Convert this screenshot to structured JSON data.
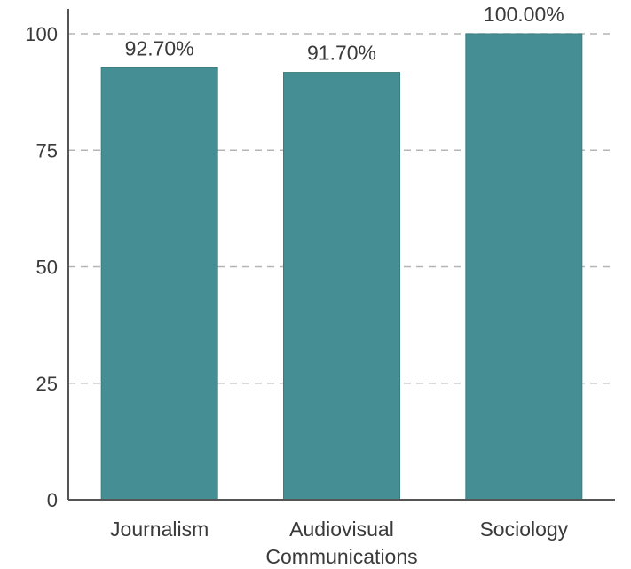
{
  "chart_data": {
    "type": "bar",
    "categories": [
      "Journalism",
      "Audiovisual Communications",
      "Sociology"
    ],
    "category_lines": [
      [
        "Journalism"
      ],
      [
        "Audiovisual",
        "Communications"
      ],
      [
        "Sociology"
      ]
    ],
    "values": [
      92.7,
      91.7,
      100.0
    ],
    "data_labels": [
      "92.70%",
      "91.70%",
      "100.00%"
    ],
    "ylim": [
      0,
      100
    ],
    "yticks": [
      0,
      25,
      50,
      75,
      100
    ],
    "ytick_labels": [
      "0",
      "25",
      "50",
      "75",
      "100"
    ],
    "grid": true,
    "bar_color": "#458f94",
    "bar_edge_color": "#3a7c80"
  }
}
